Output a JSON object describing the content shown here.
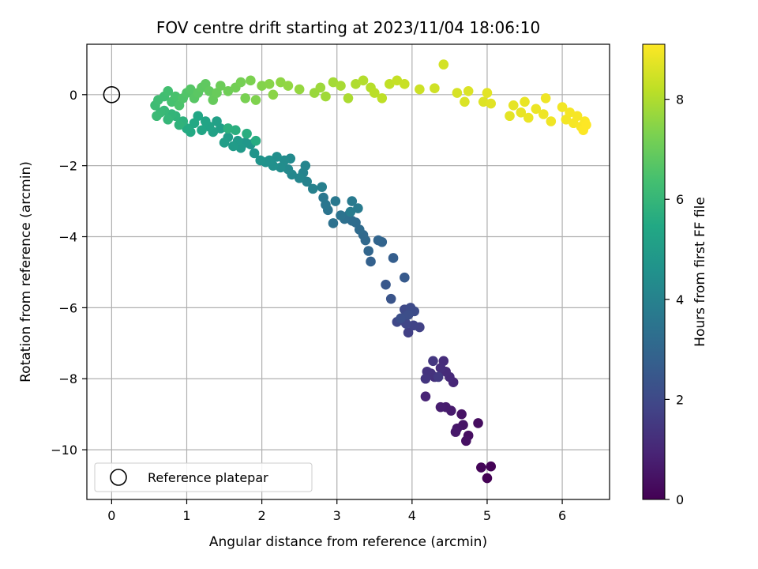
{
  "chart_data": {
    "type": "scatter",
    "title": "FOV centre drift starting at 2023/11/04 18:06:10",
    "xlabel": "Angular distance from reference (arcmin)",
    "ylabel": "Rotation from reference (arcmin)",
    "xlim": [
      -0.33,
      6.63
    ],
    "ylim": [
      -11.4,
      1.42
    ],
    "xticks": [
      0,
      1,
      2,
      3,
      4,
      5,
      6
    ],
    "yticks": [
      0,
      -2,
      -4,
      -6,
      -8,
      -10
    ],
    "xtick_labels": [
      "0",
      "1",
      "2",
      "3",
      "4",
      "5",
      "6"
    ],
    "ytick_labels": [
      "0",
      "−2",
      "−4",
      "−6",
      "−8",
      "−10"
    ],
    "grid": true,
    "colormap": "viridis",
    "colorbar": {
      "label": "Hours from first FF file",
      "range": [
        0,
        9.1
      ],
      "ticks": [
        0,
        2,
        4,
        6,
        8
      ],
      "tick_labels": [
        "0",
        "2",
        "4",
        "6",
        "8"
      ]
    },
    "legend": {
      "placement": "lower-left",
      "entries": [
        {
          "label": "Reference platepar",
          "marker": "open-circle",
          "color": "#000000"
        }
      ]
    },
    "reference_point": {
      "x": 0,
      "y": 0
    },
    "series": [
      {
        "marker": "circle",
        "columns": [
          "x",
          "y",
          "hours"
        ],
        "points": [
          [
            5.0,
            -10.8,
            0.0
          ],
          [
            5.05,
            -10.47,
            0.05
          ],
          [
            4.92,
            -10.5,
            0.1
          ],
          [
            4.88,
            -9.25,
            0.3
          ],
          [
            4.75,
            -9.6,
            0.35
          ],
          [
            4.72,
            -9.75,
            0.4
          ],
          [
            4.66,
            -9.0,
            0.45
          ],
          [
            4.68,
            -9.3,
            0.5
          ],
          [
            4.6,
            -9.4,
            0.55
          ],
          [
            4.58,
            -9.5,
            0.6
          ],
          [
            4.52,
            -8.9,
            0.65
          ],
          [
            4.45,
            -8.8,
            0.7
          ],
          [
            4.38,
            -8.8,
            0.75
          ],
          [
            4.18,
            -8.5,
            0.9
          ],
          [
            4.55,
            -8.1,
            1.0
          ],
          [
            4.5,
            -7.95,
            1.05
          ],
          [
            4.45,
            -7.8,
            1.1
          ],
          [
            4.42,
            -7.5,
            1.15
          ],
          [
            4.38,
            -7.7,
            1.2
          ],
          [
            4.3,
            -7.95,
            1.25
          ],
          [
            4.25,
            -7.85,
            1.3
          ],
          [
            4.2,
            -7.8,
            1.35
          ],
          [
            4.18,
            -8.0,
            1.4
          ],
          [
            4.28,
            -7.5,
            1.45
          ],
          [
            4.35,
            -7.95,
            1.5
          ],
          [
            3.95,
            -6.7,
            1.7
          ],
          [
            4.1,
            -6.55,
            1.75
          ],
          [
            4.02,
            -6.5,
            1.8
          ],
          [
            3.88,
            -6.35,
            1.85
          ],
          [
            3.92,
            -6.45,
            1.9
          ],
          [
            3.8,
            -6.4,
            1.95
          ],
          [
            3.9,
            -6.05,
            2.0
          ],
          [
            3.98,
            -6.0,
            2.05
          ],
          [
            4.03,
            -6.1,
            2.1
          ],
          [
            3.95,
            -6.2,
            2.15
          ],
          [
            3.85,
            -6.3,
            2.2
          ],
          [
            3.72,
            -5.75,
            2.35
          ],
          [
            3.65,
            -5.35,
            2.45
          ],
          [
            3.9,
            -5.15,
            2.55
          ],
          [
            3.75,
            -4.6,
            2.7
          ],
          [
            3.45,
            -4.7,
            2.8
          ],
          [
            3.6,
            -4.15,
            2.9
          ],
          [
            3.55,
            -4.1,
            2.95
          ],
          [
            3.42,
            -4.4,
            3.0
          ],
          [
            3.38,
            -4.1,
            3.05
          ],
          [
            3.35,
            -3.95,
            3.1
          ],
          [
            3.3,
            -3.8,
            3.15
          ],
          [
            3.25,
            -3.6,
            3.2
          ],
          [
            3.2,
            -3.55,
            3.25
          ],
          [
            3.15,
            -3.4,
            3.3
          ],
          [
            3.1,
            -3.5,
            3.35
          ],
          [
            2.95,
            -3.62,
            3.4
          ],
          [
            3.05,
            -3.4,
            3.45
          ],
          [
            2.88,
            -3.25,
            3.5
          ],
          [
            2.85,
            -3.1,
            3.55
          ],
          [
            2.82,
            -2.9,
            3.6
          ],
          [
            2.98,
            -3.0,
            3.65
          ],
          [
            3.2,
            -3.0,
            3.7
          ],
          [
            3.28,
            -3.2,
            3.75
          ],
          [
            3.18,
            -3.3,
            3.8
          ],
          [
            2.8,
            -2.6,
            3.9
          ],
          [
            2.68,
            -2.65,
            3.95
          ],
          [
            2.6,
            -2.45,
            4.0
          ],
          [
            2.55,
            -2.2,
            4.05
          ],
          [
            2.58,
            -2.0,
            4.1
          ],
          [
            2.5,
            -2.35,
            4.15
          ],
          [
            2.4,
            -2.25,
            4.2
          ],
          [
            2.35,
            -2.1,
            4.25
          ],
          [
            2.38,
            -1.8,
            4.3
          ],
          [
            2.3,
            -1.85,
            4.35
          ],
          [
            2.25,
            -2.05,
            4.4
          ],
          [
            2.2,
            -1.75,
            4.45
          ],
          [
            2.15,
            -2.0,
            4.5
          ],
          [
            2.1,
            -1.85,
            4.55
          ],
          [
            2.05,
            -1.9,
            4.6
          ],
          [
            1.98,
            -1.85,
            4.65
          ],
          [
            1.9,
            -1.65,
            4.7
          ],
          [
            1.85,
            -1.4,
            4.75
          ],
          [
            1.78,
            -1.35,
            4.8
          ],
          [
            1.72,
            -1.5,
            4.85
          ],
          [
            1.68,
            -1.3,
            4.9
          ],
          [
            1.62,
            -1.45,
            4.95
          ],
          [
            1.55,
            -1.2,
            5.0
          ],
          [
            1.5,
            -1.35,
            5.05
          ],
          [
            1.45,
            -0.95,
            5.1
          ],
          [
            1.4,
            -0.75,
            5.15
          ],
          [
            1.35,
            -1.05,
            5.2
          ],
          [
            1.3,
            -0.9,
            5.25
          ],
          [
            1.25,
            -0.75,
            5.3
          ],
          [
            1.2,
            -1.0,
            5.35
          ],
          [
            1.15,
            -0.6,
            5.4
          ],
          [
            1.1,
            -0.8,
            5.45
          ],
          [
            1.05,
            -1.05,
            5.5
          ],
          [
            1.0,
            -0.95,
            5.55
          ],
          [
            1.92,
            -1.3,
            5.6
          ],
          [
            1.8,
            -1.1,
            5.65
          ],
          [
            1.65,
            -1.0,
            5.7
          ],
          [
            1.55,
            -0.95,
            5.75
          ],
          [
            0.95,
            -0.75,
            5.8
          ],
          [
            0.9,
            -0.85,
            5.85
          ],
          [
            0.85,
            -0.6,
            5.9
          ],
          [
            0.8,
            -0.55,
            5.95
          ],
          [
            0.75,
            -0.7,
            6.0
          ],
          [
            0.7,
            -0.45,
            6.05
          ],
          [
            0.65,
            -0.5,
            6.1
          ],
          [
            0.6,
            -0.6,
            6.15
          ],
          [
            0.58,
            -0.3,
            6.2
          ],
          [
            0.62,
            -0.15,
            6.25
          ],
          [
            0.7,
            -0.05,
            6.3
          ],
          [
            0.75,
            0.1,
            6.35
          ],
          [
            0.8,
            -0.2,
            6.4
          ],
          [
            0.85,
            -0.05,
            6.45
          ],
          [
            0.9,
            -0.3,
            6.5
          ],
          [
            0.95,
            -0.1,
            6.55
          ],
          [
            1.0,
            0.05,
            6.6
          ],
          [
            1.05,
            0.15,
            6.65
          ],
          [
            1.1,
            -0.1,
            6.7
          ],
          [
            1.15,
            0.05,
            6.75
          ],
          [
            1.2,
            0.2,
            6.8
          ],
          [
            1.25,
            0.3,
            6.85
          ],
          [
            1.3,
            0.1,
            6.9
          ],
          [
            1.35,
            -0.15,
            6.95
          ],
          [
            1.4,
            0.05,
            7.0
          ],
          [
            1.45,
            0.25,
            7.05
          ],
          [
            1.55,
            0.1,
            7.1
          ],
          [
            1.65,
            0.2,
            7.15
          ],
          [
            1.72,
            0.35,
            7.2
          ],
          [
            1.78,
            -0.1,
            7.25
          ],
          [
            1.85,
            0.4,
            7.3
          ],
          [
            1.92,
            -0.15,
            7.35
          ],
          [
            2.0,
            0.25,
            7.4
          ],
          [
            2.1,
            0.3,
            7.45
          ],
          [
            2.15,
            0.0,
            7.5
          ],
          [
            2.25,
            0.35,
            7.55
          ],
          [
            2.35,
            0.25,
            7.6
          ],
          [
            2.5,
            0.15,
            7.65
          ],
          [
            2.7,
            0.05,
            7.7
          ],
          [
            2.78,
            0.2,
            7.75
          ],
          [
            2.85,
            -0.05,
            7.8
          ],
          [
            2.95,
            0.35,
            7.85
          ],
          [
            3.05,
            0.25,
            7.9
          ],
          [
            3.15,
            -0.1,
            7.95
          ],
          [
            3.25,
            0.3,
            8.0
          ],
          [
            3.35,
            0.4,
            8.05
          ],
          [
            3.45,
            0.2,
            8.1
          ],
          [
            3.5,
            0.05,
            8.15
          ],
          [
            3.6,
            -0.1,
            8.2
          ],
          [
            3.7,
            0.3,
            8.25
          ],
          [
            3.8,
            0.4,
            8.3
          ],
          [
            3.9,
            0.3,
            8.35
          ],
          [
            4.1,
            0.15,
            8.4
          ],
          [
            4.3,
            0.18,
            8.45
          ],
          [
            4.42,
            0.85,
            8.5
          ],
          [
            4.6,
            0.05,
            8.55
          ],
          [
            4.7,
            -0.2,
            8.6
          ],
          [
            4.75,
            0.1,
            8.62
          ],
          [
            4.95,
            -0.2,
            8.65
          ],
          [
            5.05,
            -0.25,
            8.7
          ],
          [
            5.0,
            0.05,
            8.72
          ],
          [
            5.3,
            -0.6,
            8.75
          ],
          [
            5.35,
            -0.3,
            8.78
          ],
          [
            5.45,
            -0.5,
            8.8
          ],
          [
            5.5,
            -0.2,
            8.82
          ],
          [
            5.55,
            -0.65,
            8.84
          ],
          [
            5.65,
            -0.4,
            8.86
          ],
          [
            5.75,
            -0.55,
            8.88
          ],
          [
            5.78,
            -0.1,
            8.9
          ],
          [
            5.85,
            -0.75,
            8.92
          ],
          [
            6.0,
            -0.35,
            8.94
          ],
          [
            6.05,
            -0.7,
            8.96
          ],
          [
            6.1,
            -0.5,
            8.98
          ],
          [
            6.15,
            -0.8,
            9.0
          ],
          [
            6.2,
            -0.6,
            9.02
          ],
          [
            6.25,
            -0.9,
            9.04
          ],
          [
            6.3,
            -0.75,
            9.06
          ],
          [
            6.28,
            -1.0,
            9.08
          ],
          [
            6.32,
            -0.85,
            9.1
          ]
        ]
      }
    ]
  }
}
